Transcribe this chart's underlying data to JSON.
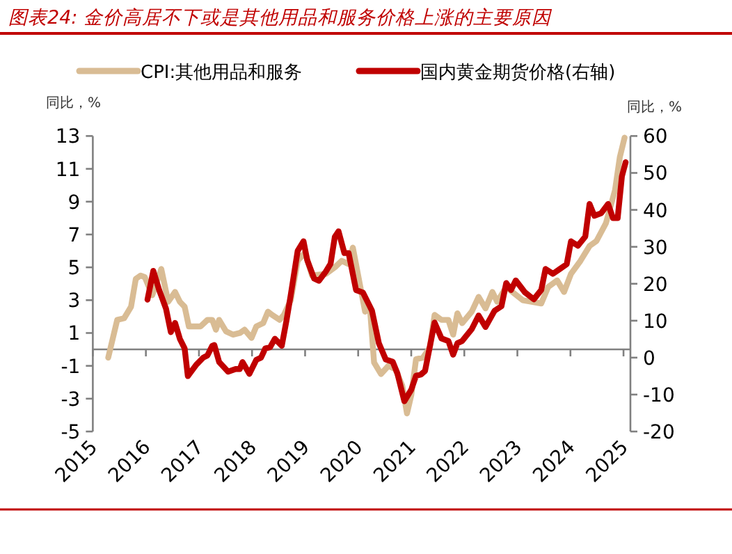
{
  "chart_data": {
    "type": "line",
    "title": "图表24:  金价高居不下或是其他用品和服务价格上涨的主要原因",
    "ylabel": "同比，%",
    "y2label": "同比，%",
    "legend": "top",
    "xlim": [
      2015,
      2025.13
    ],
    "xticks": [
      2015,
      2016,
      2017,
      2018,
      2019,
      2020,
      2021,
      2022,
      2023,
      2024,
      2025
    ],
    "ylim": [
      -5,
      13
    ],
    "yticks": [
      -5,
      -3,
      -1,
      1,
      3,
      5,
      7,
      9,
      11,
      13
    ],
    "y2lim": [
      -20,
      60
    ],
    "y2ticks": [
      -20,
      -10,
      0,
      10,
      20,
      30,
      40,
      50,
      60
    ],
    "series": [
      {
        "name": "CPI:其他用品和服务",
        "color": "#d9bc94",
        "x": [
          2015.29,
          2015.46,
          2015.59,
          2015.72,
          2015.81,
          2015.9,
          2015.98,
          2016.12,
          2016.29,
          2016.42,
          2016.55,
          2016.64,
          2016.73,
          2016.81,
          2017.03,
          2017.16,
          2017.25,
          2017.32,
          2017.38,
          2017.51,
          2017.64,
          2017.77,
          2017.86,
          2017.99,
          2018.08,
          2018.21,
          2018.3,
          2018.38,
          2018.52,
          2018.6,
          2018.73,
          2018.86,
          2019.0,
          2019.13,
          2019.39,
          2019.56,
          2019.69,
          2019.82,
          2019.9,
          2020.13,
          2020.22,
          2020.3,
          2020.43,
          2020.57,
          2020.7,
          2020.83,
          2020.92,
          2021.0,
          2021.09,
          2021.22,
          2021.35,
          2021.44,
          2021.57,
          2021.7,
          2021.79,
          2021.87,
          2021.96,
          2022.14,
          2022.27,
          2022.4,
          2022.53,
          2022.62,
          2022.79,
          2023.1,
          2023.27,
          2023.45,
          2023.58,
          2023.75,
          2023.88,
          2024.01,
          2024.19,
          2024.36,
          2024.49,
          2024.67,
          2024.84,
          2024.93,
          2025.02
        ],
        "values": [
          -0.5,
          1.8,
          1.9,
          2.6,
          4.3,
          4.5,
          4.4,
          3.3,
          4.9,
          2.9,
          3.5,
          2.9,
          2.6,
          1.4,
          1.4,
          1.8,
          1.8,
          1.2,
          1.8,
          1.1,
          0.9,
          1.0,
          1.2,
          0.7,
          1.4,
          1.6,
          2.3,
          2.1,
          1.8,
          2.1,
          3.0,
          5.4,
          5.9,
          4.5,
          4.6,
          5.0,
          5.4,
          5.2,
          6.2,
          2.3,
          2.6,
          -0.8,
          -1.5,
          -1.0,
          -1.2,
          -2.2,
          -3.9,
          -2.8,
          -0.6,
          -0.5,
          0.1,
          2.1,
          1.8,
          1.8,
          0.9,
          2.2,
          1.6,
          2.3,
          3.2,
          2.5,
          3.5,
          2.9,
          3.8,
          3.0,
          2.9,
          2.8,
          3.8,
          4.2,
          3.5,
          4.6,
          5.4,
          6.3,
          6.6,
          7.7,
          9.7,
          11.7,
          12.9
        ]
      },
      {
        "name": "国内黄金期货价格(右轴)",
        "color": "#c00000",
        "axis": "y2",
        "x": [
          2016.03,
          2016.14,
          2016.25,
          2016.38,
          2016.47,
          2016.55,
          2016.64,
          2016.73,
          2016.79,
          2016.95,
          2017.08,
          2017.16,
          2017.25,
          2017.29,
          2017.38,
          2017.55,
          2017.69,
          2017.77,
          2017.82,
          2017.95,
          2018.08,
          2018.17,
          2018.25,
          2018.34,
          2018.43,
          2018.56,
          2018.65,
          2018.73,
          2018.86,
          2018.97,
          2019.04,
          2019.17,
          2019.26,
          2019.39,
          2019.48,
          2019.56,
          2019.63,
          2019.74,
          2019.82,
          2019.96,
          2020.09,
          2020.26,
          2020.39,
          2020.52,
          2020.65,
          2020.74,
          2020.87,
          2021.0,
          2021.09,
          2021.18,
          2021.26,
          2021.44,
          2021.57,
          2021.7,
          2021.79,
          2021.87,
          2021.96,
          2022.14,
          2022.27,
          2022.4,
          2022.57,
          2022.7,
          2022.79,
          2022.88,
          2022.97,
          2023.14,
          2023.31,
          2023.45,
          2023.53,
          2023.67,
          2023.8,
          2023.93,
          2024.01,
          2024.14,
          2024.28,
          2024.36,
          2024.45,
          2024.58,
          2024.71,
          2024.8,
          2024.89,
          2024.97,
          2025.04
        ],
        "values": [
          15.7,
          23.5,
          18.3,
          13.2,
          6.9,
          9.4,
          5.1,
          2.5,
          -5.0,
          -1.9,
          0,
          0.6,
          3.2,
          3.4,
          -1.2,
          -3.8,
          -3.1,
          -3.1,
          -1.2,
          -4.4,
          -0.6,
          0,
          2.5,
          2.8,
          5.1,
          3.2,
          10.1,
          17.0,
          28.9,
          31.5,
          26.4,
          21.4,
          20.8,
          23.3,
          25.4,
          32.7,
          34.2,
          28.3,
          28.3,
          18.3,
          17.6,
          12.7,
          3.9,
          -0.5,
          -1.1,
          -4.3,
          -11.8,
          -8.7,
          -4.9,
          -4.6,
          -3.6,
          9.5,
          5.2,
          4.5,
          0.8,
          3.9,
          4.5,
          7.7,
          11.4,
          8.3,
          12.7,
          13.9,
          20.2,
          18.3,
          20.9,
          17.7,
          15.8,
          18.3,
          24.0,
          22.7,
          24.0,
          25.3,
          31.5,
          30.3,
          32.8,
          41.6,
          38.4,
          39.1,
          41.6,
          37.8,
          37.8,
          49.1,
          52.9
        ]
      }
    ]
  }
}
